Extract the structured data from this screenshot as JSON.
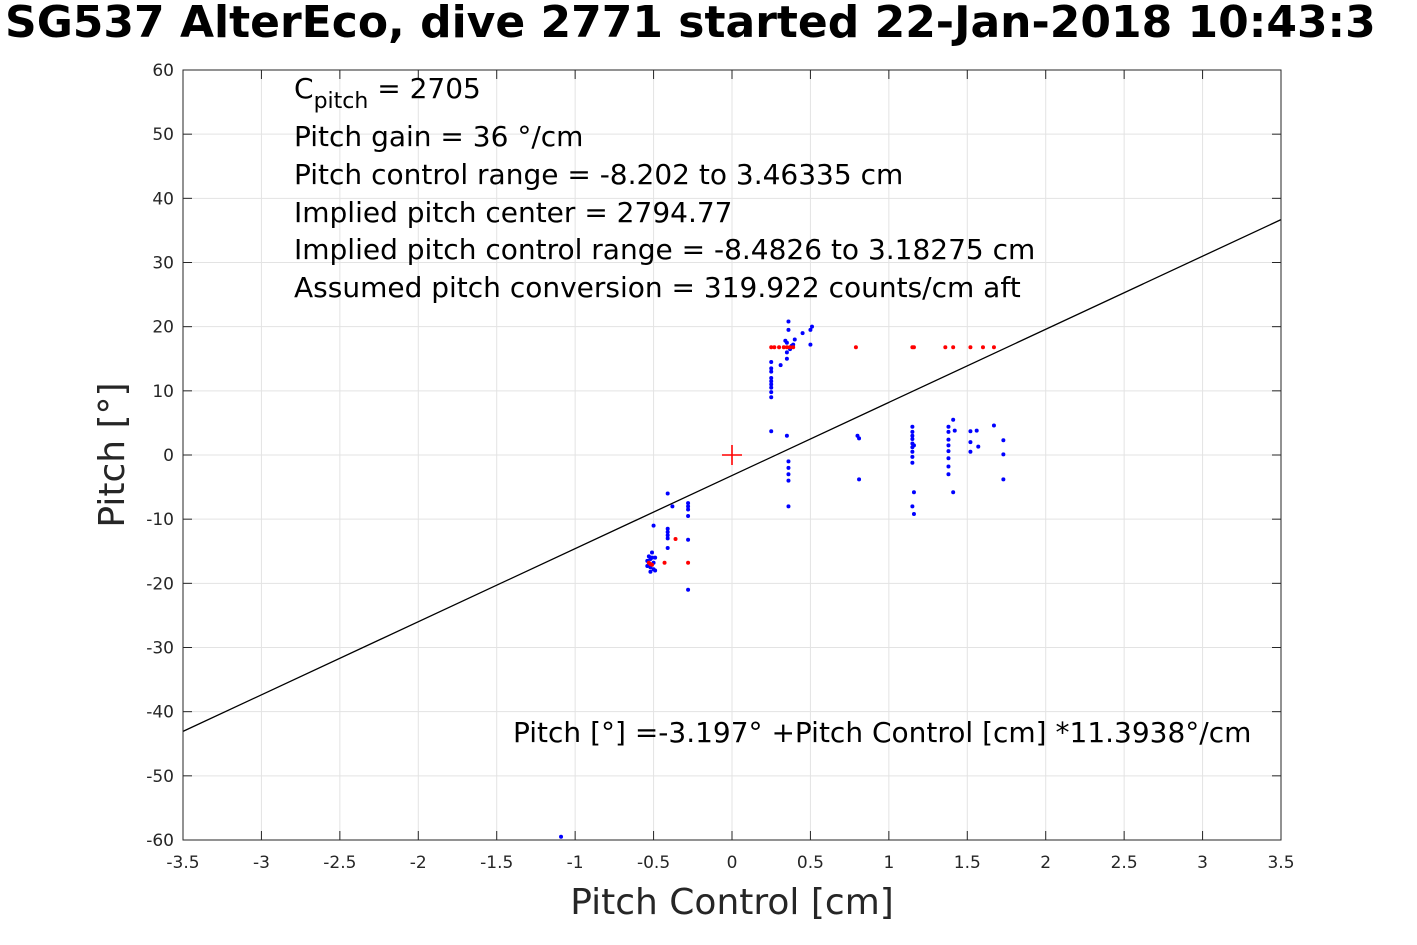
{
  "chart_data": {
    "type": "scatter",
    "title": "SG537 AlterEco, dive 2771 started 22-Jan-2018 10:43:3",
    "xlabel": "Pitch Control [cm]",
    "ylabel": "Pitch [°]",
    "xlim": [
      -3.5,
      3.5
    ],
    "ylim": [
      -60,
      60
    ],
    "xticks": [
      "-3.5",
      "-3",
      "-2.5",
      "-2",
      "-1.5",
      "-1",
      "-0.5",
      "0",
      "0.5",
      "1",
      "1.5",
      "2",
      "2.5",
      "3",
      "3.5"
    ],
    "yticks": [
      "-60",
      "-50",
      "-40",
      "-30",
      "-20",
      "-10",
      "0",
      "10",
      "20",
      "30",
      "40",
      "50",
      "60"
    ],
    "grid": true,
    "annotations": {
      "c_pitch_main": "C",
      "c_pitch_sub": "pitch",
      "c_pitch_value": " = 2705",
      "lines": [
        "Pitch gain = 36 °/cm",
        "Pitch control range = -8.202 to 3.46335 cm",
        "Implied pitch center = 2794.77",
        "Implied pitch control range = -8.4826 to 3.18275 cm",
        "Assumed pitch conversion = 319.922 counts/cm aft"
      ],
      "fit_equation": "Pitch [°] =-3.197° +Pitch Control [cm] *11.3938°/cm"
    },
    "fit_line": {
      "intercept": -3.197,
      "slope": 11.3938,
      "color": "#000000"
    },
    "center_marker": {
      "x": 0,
      "y": 0,
      "color": "#ff0000"
    },
    "series": [
      {
        "color": "#0000ff",
        "points": [
          [
            -0.54,
            -16.5
          ],
          [
            -0.53,
            -17
          ],
          [
            -0.52,
            -17.5
          ],
          [
            -0.52,
            -18.2
          ],
          [
            -0.51,
            -16
          ],
          [
            -0.51,
            -15.2
          ],
          [
            -0.5,
            -17.8
          ],
          [
            -0.5,
            -16.8
          ],
          [
            -0.53,
            -15.8
          ],
          [
            -0.54,
            -17.3
          ],
          [
            -0.49,
            -18
          ],
          [
            -0.52,
            -16.2
          ],
          [
            -0.5,
            -11
          ],
          [
            -0.49,
            -16
          ],
          [
            -0.41,
            -6
          ],
          [
            -0.41,
            -11.5
          ],
          [
            -0.41,
            -12
          ],
          [
            -0.41,
            -12.5
          ],
          [
            -0.41,
            -13
          ],
          [
            -0.41,
            -14.5
          ],
          [
            -0.38,
            -8
          ],
          [
            -0.28,
            -7.5
          ],
          [
            -0.28,
            -8
          ],
          [
            -0.28,
            -8.5
          ],
          [
            -0.28,
            -9.5
          ],
          [
            -0.28,
            -13.2
          ],
          [
            -0.28,
            -21
          ],
          [
            -1.09,
            -59.5
          ],
          [
            0.25,
            9
          ],
          [
            0.25,
            9.8
          ],
          [
            0.25,
            10.5
          ],
          [
            0.25,
            11
          ],
          [
            0.25,
            11.5
          ],
          [
            0.25,
            12
          ],
          [
            0.25,
            13
          ],
          [
            0.25,
            13.5
          ],
          [
            0.25,
            14.5
          ],
          [
            0.25,
            3.7
          ],
          [
            0.31,
            14
          ],
          [
            0.34,
            17.8
          ],
          [
            0.35,
            15
          ],
          [
            0.35,
            16
          ],
          [
            0.35,
            17.5
          ],
          [
            0.36,
            19.5
          ],
          [
            0.36,
            20.8
          ],
          [
            0.37,
            16.5
          ],
          [
            0.38,
            17
          ],
          [
            0.39,
            17.2
          ],
          [
            0.4,
            18
          ],
          [
            0.45,
            19
          ],
          [
            0.5,
            17.2
          ],
          [
            0.5,
            19.5
          ],
          [
            0.51,
            20
          ],
          [
            0.35,
            3
          ],
          [
            0.36,
            -1
          ],
          [
            0.36,
            -2
          ],
          [
            0.36,
            -3
          ],
          [
            0.36,
            -4
          ],
          [
            0.36,
            -8
          ],
          [
            0.8,
            3
          ],
          [
            0.81,
            2.6
          ],
          [
            0.81,
            -3.8
          ],
          [
            1.15,
            4.4
          ],
          [
            1.15,
            3.6
          ],
          [
            1.15,
            3
          ],
          [
            1.15,
            2.5
          ],
          [
            1.15,
            1.8
          ],
          [
            1.15,
            1.2
          ],
          [
            1.15,
            0.5
          ],
          [
            1.15,
            -0.3
          ],
          [
            1.15,
            -1.2
          ],
          [
            1.16,
            -5.8
          ],
          [
            1.15,
            -8
          ],
          [
            1.16,
            -9.2
          ],
          [
            1.16,
            1.5
          ],
          [
            1.38,
            4.4
          ],
          [
            1.38,
            3.6
          ],
          [
            1.38,
            2.4
          ],
          [
            1.38,
            1.5
          ],
          [
            1.38,
            0.6
          ],
          [
            1.38,
            -0.5
          ],
          [
            1.38,
            -1.8
          ],
          [
            1.38,
            -3
          ],
          [
            1.41,
            5.5
          ],
          [
            1.42,
            3.8
          ],
          [
            1.41,
            -5.8
          ],
          [
            1.52,
            3.7
          ],
          [
            1.52,
            2
          ],
          [
            1.52,
            0.5
          ],
          [
            1.56,
            3.8
          ],
          [
            1.57,
            1.3
          ],
          [
            1.67,
            4.6
          ],
          [
            1.73,
            2.3
          ],
          [
            1.73,
            0.1
          ],
          [
            1.73,
            -3.8
          ]
        ]
      },
      {
        "color": "#ff0000",
        "points": [
          [
            -0.53,
            -16.8
          ],
          [
            -0.52,
            -17
          ],
          [
            -0.51,
            -17.1
          ],
          [
            -0.43,
            -16.8
          ],
          [
            -0.36,
            -13.1
          ],
          [
            -0.28,
            -16.8
          ],
          [
            0.25,
            16.8
          ],
          [
            0.27,
            16.8
          ],
          [
            0.3,
            16.8
          ],
          [
            0.33,
            16.8
          ],
          [
            0.35,
            16.8
          ],
          [
            0.37,
            16.8
          ],
          [
            0.39,
            16.8
          ],
          [
            0.79,
            16.8
          ],
          [
            1.15,
            16.8
          ],
          [
            1.16,
            16.8
          ],
          [
            1.36,
            16.8
          ],
          [
            1.41,
            16.8
          ],
          [
            1.52,
            16.8
          ],
          [
            1.6,
            16.8
          ],
          [
            1.67,
            16.8
          ]
        ]
      }
    ]
  }
}
